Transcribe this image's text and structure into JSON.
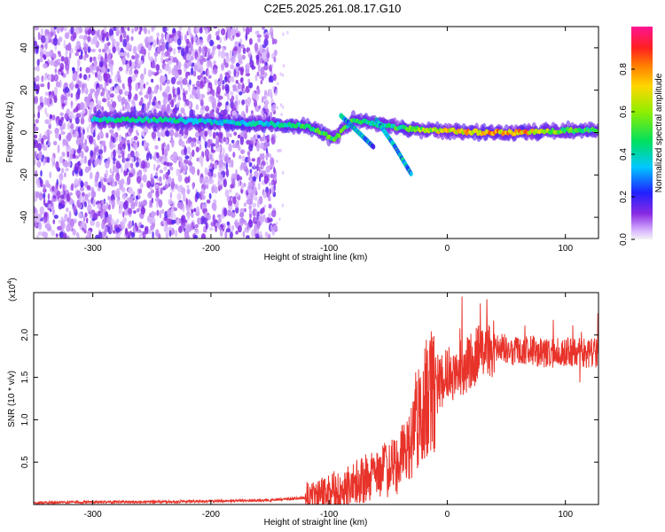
{
  "page": {
    "title": "C2E5.2025.261.08.17.G10"
  },
  "chart_data": [
    {
      "type": "heatmap",
      "xlabel": "Height of straight line (km)",
      "ylabel": "Frequency (Hz)",
      "xlim": [
        -350,
        128
      ],
      "ylim": [
        -50,
        50
      ],
      "x_ticks": [
        -300,
        -200,
        -100,
        0,
        100
      ],
      "y_ticks": [
        -40,
        -20,
        0,
        20,
        40
      ],
      "colorbar": {
        "label": "Normalized spectral amplitude",
        "range": [
          0,
          1
        ],
        "ticks": [
          "0.0",
          "0.2",
          "0.4",
          "0.6",
          "0.8"
        ]
      },
      "features": {
        "noise_region_x": [
          -350,
          -155
        ],
        "main_track": [
          {
            "x": -290,
            "f": 6,
            "amp": 0.45
          },
          {
            "x": -250,
            "f": 6,
            "amp": 0.45
          },
          {
            "x": -200,
            "f": 5,
            "amp": 0.4
          },
          {
            "x": -150,
            "f": 4,
            "amp": 0.4
          },
          {
            "x": -120,
            "f": 3,
            "amp": 0.5
          },
          {
            "x": -95,
            "f": -3,
            "amp": 0.55
          },
          {
            "x": -80,
            "f": 6,
            "amp": 0.5
          },
          {
            "x": -60,
            "f": 4,
            "amp": 0.45
          },
          {
            "x": -40,
            "f": 2,
            "amp": 0.5
          },
          {
            "x": -10,
            "f": 1,
            "amp": 0.7
          },
          {
            "x": 30,
            "f": 0,
            "amp": 0.8
          },
          {
            "x": 60,
            "f": 0,
            "amp": 0.85
          },
          {
            "x": 100,
            "f": 1,
            "amp": 0.55
          },
          {
            "x": 128,
            "f": 1,
            "amp": 0.5
          }
        ],
        "secondary_tracks": [
          [
            {
              "x": -90,
              "f": 8
            },
            {
              "x": -75,
              "f": 0
            },
            {
              "x": -62,
              "f": -7
            }
          ],
          [
            {
              "x": -60,
              "f": 6
            },
            {
              "x": -45,
              "f": -6
            },
            {
              "x": -30,
              "f": -20
            }
          ]
        ]
      }
    },
    {
      "type": "line",
      "xlabel": "Height of straight line (km)",
      "ylabel": "SNR (10 * v/v)",
      "y_multiplier": "(x10",
      "y_multiplier_exp": "4",
      "xlim": [
        -350,
        128
      ],
      "ylim": [
        0,
        2.5
      ],
      "x_ticks": [
        -300,
        -200,
        -100,
        0,
        100
      ],
      "y_ticks": [
        "0.5",
        "1.0",
        "1.5",
        "2.0"
      ],
      "line_color": "#e8332a",
      "series": [
        {
          "x": [
            -350,
            -300,
            -250,
            -200,
            -150,
            -120,
            -100,
            -80,
            -60,
            -40,
            -30,
            -20,
            -10,
            0,
            10,
            20,
            30,
            40,
            50,
            60,
            70,
            80,
            90,
            100,
            110,
            120,
            128
          ],
          "values": [
            0.02,
            0.03,
            0.03,
            0.04,
            0.05,
            0.08,
            0.15,
            0.25,
            0.35,
            0.5,
            0.8,
            1.2,
            1.4,
            1.5,
            1.6,
            1.7,
            1.8,
            1.85,
            1.85,
            1.8,
            1.82,
            1.8,
            1.78,
            1.8,
            1.8,
            1.78,
            1.8
          ]
        }
      ]
    }
  ]
}
